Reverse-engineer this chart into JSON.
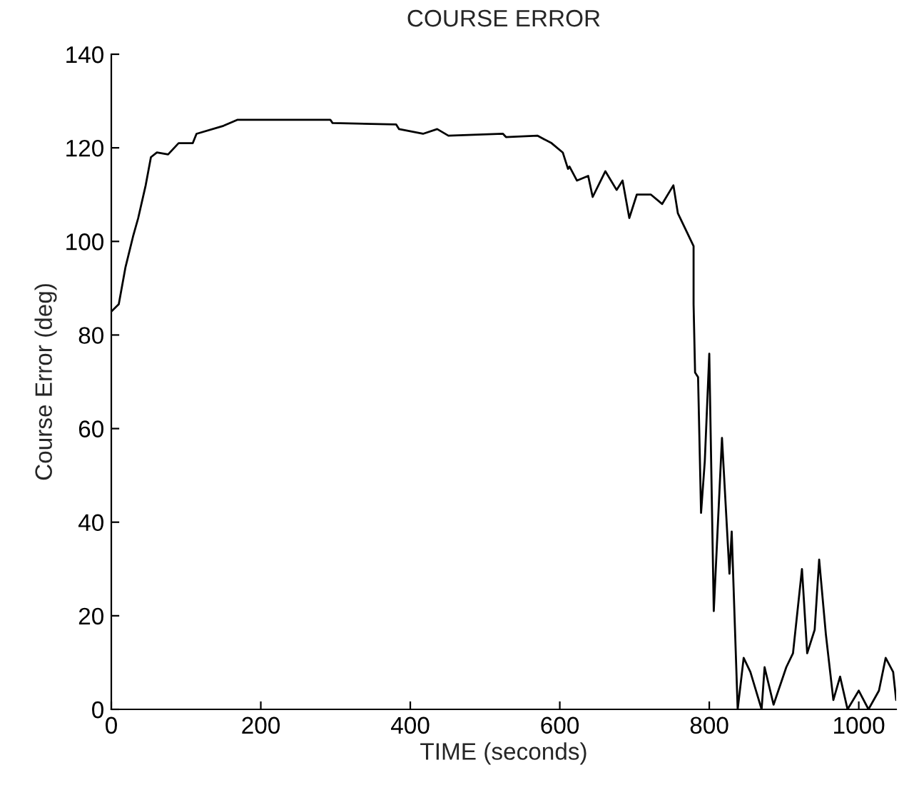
{
  "chart_data": {
    "type": "line",
    "title": "COURSE ERROR",
    "xlabel": "TIME (seconds)",
    "ylabel": "Course Error (deg)",
    "xlim": [
      0,
      1050
    ],
    "ylim": [
      0,
      140
    ],
    "xticks": [
      0,
      200,
      400,
      600,
      800,
      1000
    ],
    "yticks": [
      0,
      20,
      40,
      60,
      80,
      100,
      120,
      140
    ],
    "grid": false,
    "legend": false,
    "series": [
      {
        "color": "#000000",
        "x": [
          0,
          10,
          19,
          29,
          36,
          46,
          53,
          61,
          76,
          90,
          109,
          114,
          150,
          169,
          293,
          296,
          381,
          385,
          417,
          436,
          451,
          524,
          528,
          570,
          589,
          604,
          611,
          613,
          623,
          638,
          644,
          661,
          676,
          684,
          693,
          703,
          722,
          737,
          752,
          758,
          770,
          779,
          779,
          781,
          785,
          789,
          794,
          800,
          806,
          817,
          827,
          830,
          838,
          846,
          855,
          870,
          874,
          886,
          903,
          912,
          924,
          931,
          941,
          947,
          956,
          966,
          975,
          985,
          1000,
          1013,
          1027,
          1036,
          1046,
          1050
        ],
        "values": [
          85,
          86.6,
          94.5,
          101,
          105,
          112,
          118,
          119,
          118.6,
          121,
          121,
          123,
          124.7,
          126,
          126,
          125.3,
          125,
          124,
          123,
          124,
          122.6,
          123,
          122.3,
          122.6,
          121,
          119,
          115.5,
          116,
          113,
          114,
          109.5,
          115,
          111,
          113,
          105,
          110,
          110,
          108,
          112,
          106,
          102,
          99,
          86.6,
          72,
          71,
          42,
          53,
          76,
          21,
          58,
          29,
          38,
          0,
          11,
          8,
          0,
          9,
          1,
          9,
          12,
          30,
          12,
          17,
          32,
          16,
          2,
          7,
          0,
          4,
          0,
          4,
          11,
          8,
          2
        ]
      }
    ]
  }
}
